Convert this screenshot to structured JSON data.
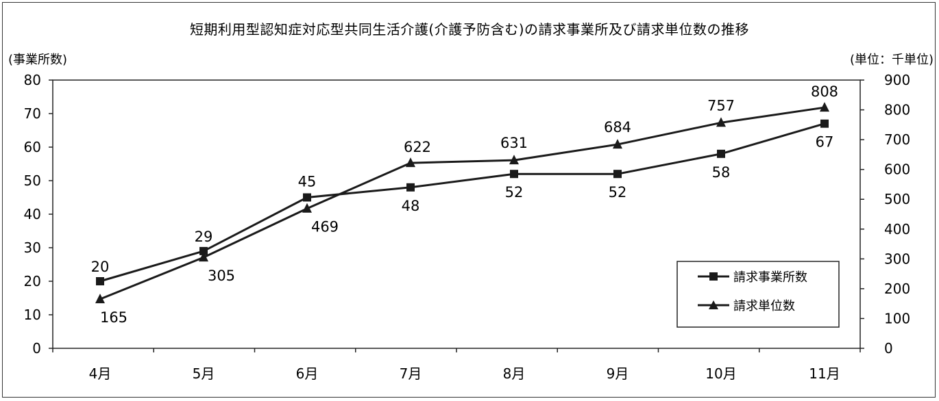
{
  "chart_data": {
    "type": "line",
    "title": "短期利用型認知症対応型共同生活介護(介護予防含む)の請求事業所及び請求単位数の推移",
    "y_left_label": "(事業所数)",
    "y_right_label": "(単位：千単位)",
    "categories": [
      "4月",
      "5月",
      "6月",
      "7月",
      "8月",
      "9月",
      "10月",
      "11月"
    ],
    "y_left_ticks": [
      "0",
      "10",
      "20",
      "30",
      "40",
      "50",
      "60",
      "70",
      "80"
    ],
    "y_right_ticks": [
      "0",
      "100",
      "200",
      "300",
      "400",
      "500",
      "600",
      "700",
      "800",
      "900"
    ],
    "ylim_left": [
      0,
      80
    ],
    "ylim_right": [
      0,
      900
    ],
    "series": [
      {
        "name": "請求事業所数",
        "axis": "left",
        "marker": "square",
        "values": [
          20,
          29,
          45,
          48,
          52,
          52,
          58,
          67
        ],
        "labels": [
          "20",
          "29",
          "45",
          "48",
          "52",
          "52",
          "58",
          "67"
        ]
      },
      {
        "name": "請求単位数",
        "axis": "right",
        "marker": "triangle",
        "values": [
          165,
          305,
          469,
          622,
          631,
          684,
          757,
          808
        ],
        "labels": [
          "165",
          "305",
          "469",
          "622",
          "631",
          "684",
          "757",
          "808"
        ]
      }
    ],
    "legend_position": "bottom-right",
    "grid": false,
    "line_color": "#1a1a1a"
  }
}
